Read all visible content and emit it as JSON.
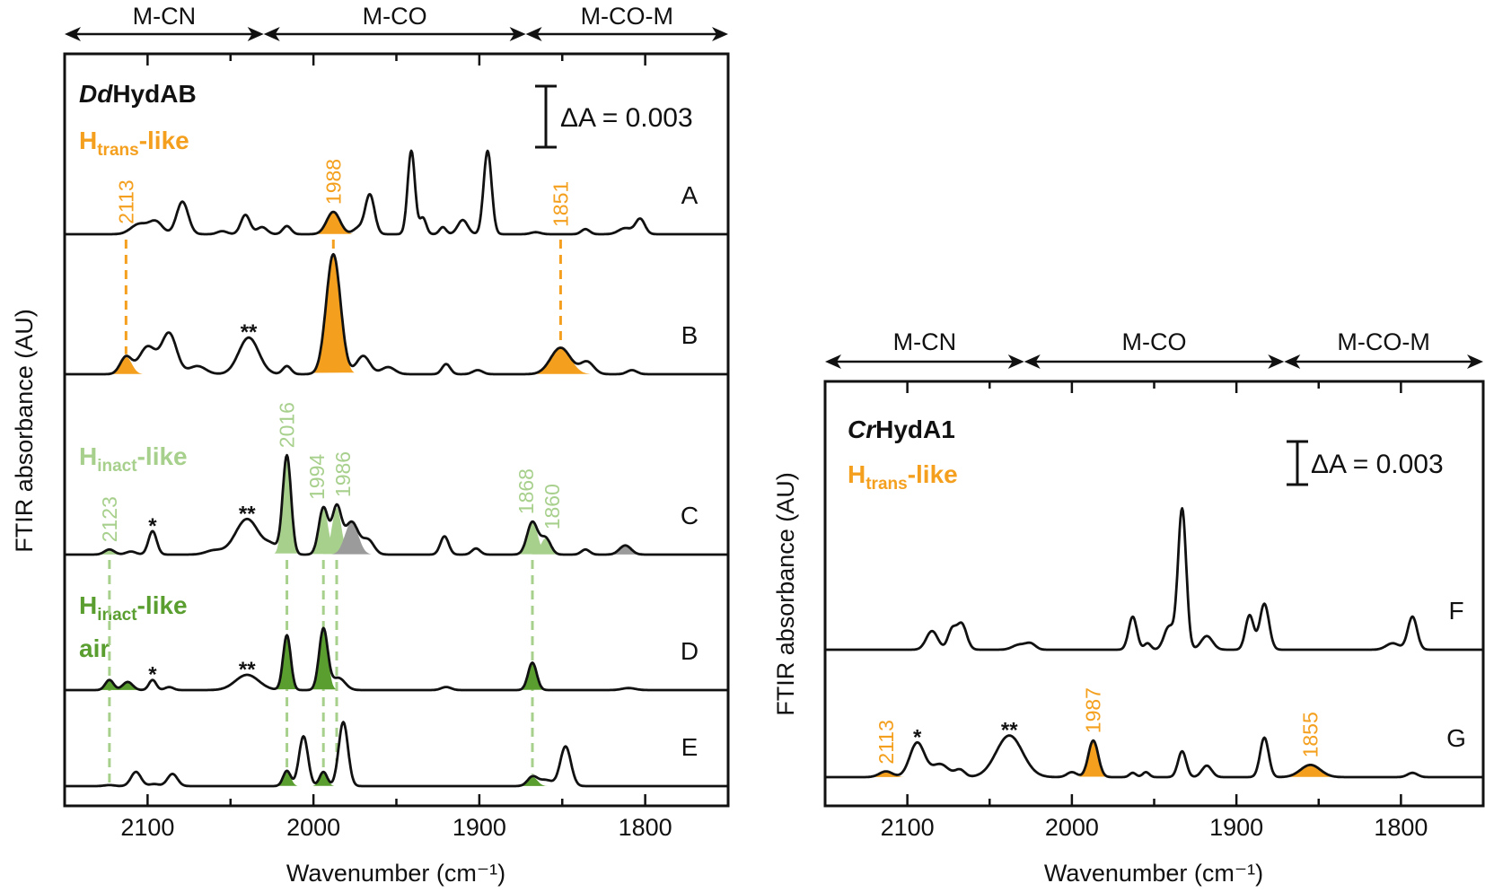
{
  "colors": {
    "orange": "#F4A01E",
    "light_green": "#A8D08D",
    "dark_green": "#5A9E30",
    "grey": "#9B9B9B",
    "trace": "#111111"
  },
  "chart_data": [
    {
      "type": "line",
      "sample": {
        "italic": "Dd",
        "bold": "HydAB"
      },
      "xlabel": "Wavenumber (cm⁻¹)",
      "ylabel": "FTIR absorbance (AU)",
      "xlim": [
        2150,
        1750
      ],
      "xticks": [
        "2100",
        "2000",
        "1900",
        "1800"
      ],
      "x_tick_values": [
        2100,
        2000,
        1900,
        1800
      ],
      "minor_ticks": [
        2050,
        1950,
        1850
      ],
      "scale_bar": "ΔA = 0.003",
      "scale_bar_value": 0.003,
      "regions": [
        {
          "label": "M-CN",
          "from": 2150,
          "to": 2030
        },
        {
          "label": "M-CO",
          "from": 2030,
          "to": 1872
        },
        {
          "label": "M-CO-M",
          "from": 1872,
          "to": 1750
        }
      ],
      "state_labels": [
        {
          "main": "H",
          "sub": "trans",
          "suffix": "-like",
          "color": "orange"
        },
        {
          "main": "H",
          "sub": "inact",
          "suffix": "-like",
          "color": "light_green"
        },
        {
          "main": "H",
          "sub": "inact",
          "suffix": "-like",
          "extra": "air",
          "color": "dark_green"
        }
      ],
      "peak_units": "mAU",
      "series": [
        {
          "name": "A",
          "peaks": [
            [
              2105,
              0.5,
              5
            ],
            [
              2095,
              0.6,
              4
            ],
            [
              2079,
              1.6,
              3.5
            ],
            [
              2055,
              0.15,
              3
            ],
            [
              2041,
              0.95,
              2.8
            ],
            [
              2031,
              0.35,
              3
            ],
            [
              2016,
              0.4,
              2.5
            ],
            [
              1988,
              1.1,
              4,
              "orange"
            ],
            [
              1973,
              0.3,
              3
            ],
            [
              1966,
              1.95,
              2.8
            ],
            [
              1941,
              4.1,
              2.2
            ],
            [
              1934,
              0.8,
              2
            ],
            [
              1922,
              0.35,
              2
            ],
            [
              1910,
              0.7,
              3
            ],
            [
              1895,
              4.1,
              2.4
            ],
            [
              1866,
              0.1,
              3
            ],
            [
              1836,
              0.25,
              2.5
            ],
            [
              1812,
              0.3,
              4
            ],
            [
              1803,
              0.75,
              2.8
            ]
          ]
        },
        {
          "name": "B",
          "peaks": [
            [
              2113,
              0.85,
              3.5,
              "orange"
            ],
            [
              2100,
              1.35,
              5
            ],
            [
              2087,
              2.0,
              4.5
            ],
            [
              2070,
              0.4,
              5
            ],
            [
              2039,
              1.8,
              6
            ],
            [
              2016,
              0.4,
              2.5
            ],
            [
              1988,
              5.9,
              4.3,
              "orange"
            ],
            [
              1970,
              0.9,
              4
            ],
            [
              1955,
              0.35,
              4
            ],
            [
              1920,
              0.5,
              2.5
            ],
            [
              1901,
              0.2,
              3
            ],
            [
              1851,
              1.3,
              6,
              "orange"
            ],
            [
              1835,
              0.6,
              4
            ],
            [
              1808,
              0.2,
              3
            ]
          ]
        },
        {
          "name": "C",
          "peaks": [
            [
              2123,
              0.25,
              3,
              "light_green"
            ],
            [
              2110,
              0.15,
              3
            ],
            [
              2097,
              1.15,
              2.5
            ],
            [
              2060,
              0.2,
              5
            ],
            [
              2040,
              1.75,
              7
            ],
            [
              2025,
              0.4,
              4
            ],
            [
              2016,
              4.85,
              2.5,
              "light_green"
            ],
            [
              1994,
              2.3,
              2.8,
              "light_green"
            ],
            [
              1986,
              2.3,
              2.8,
              "light_green"
            ],
            [
              1977,
              1.6,
              4,
              "grey"
            ],
            [
              1967,
              0.7,
              3.5
            ],
            [
              1921,
              0.9,
              2.5
            ],
            [
              1902,
              0.3,
              2.5
            ],
            [
              1868,
              1.6,
              3.2,
              "light_green"
            ],
            [
              1860,
              0.8,
              3,
              "light_green"
            ],
            [
              1836,
              0.25,
              2.5
            ],
            [
              1812,
              0.45,
              3.5,
              "grey"
            ]
          ]
        },
        {
          "name": "D",
          "peaks": [
            [
              2123,
              0.5,
              2.5,
              "dark_green"
            ],
            [
              2112,
              0.4,
              3,
              "dark_green"
            ],
            [
              2097,
              0.5,
              2.2
            ],
            [
              2087,
              0.15,
              2.5
            ],
            [
              2040,
              0.75,
              7
            ],
            [
              2016,
              2.7,
              2.3,
              "dark_green"
            ],
            [
              1994,
              3.0,
              2.6,
              "dark_green"
            ],
            [
              1985,
              0.6,
              4
            ],
            [
              1920,
              0.15,
              3
            ],
            [
              1868,
              1.35,
              2.6,
              "dark_green"
            ],
            [
              1810,
              0.1,
              4
            ]
          ]
        },
        {
          "name": "E",
          "peaks": [
            [
              2123,
              0.05,
              3,
              "dark_green"
            ],
            [
              2107,
              0.7,
              3
            ],
            [
              2096,
              0.1,
              3
            ],
            [
              2085,
              0.6,
              3
            ],
            [
              2016,
              0.75,
              2.3,
              "dark_green"
            ],
            [
              2006,
              2.45,
              2.7
            ],
            [
              1994,
              0.7,
              2.3,
              "dark_green"
            ],
            [
              1982,
              3.15,
              2.8
            ],
            [
              1868,
              0.45,
              3,
              "dark_green"
            ],
            [
              1860,
              0.3,
              4
            ],
            [
              1848,
              1.95,
              3.2
            ]
          ]
        }
      ],
      "annotations": [
        {
          "series": "A",
          "text": "2113",
          "wn": 2113,
          "color": "orange"
        },
        {
          "series": "A",
          "text": "1988",
          "wn": 1988,
          "color": "orange"
        },
        {
          "series": "A",
          "text": "1851",
          "wn": 1851,
          "color": "orange"
        },
        {
          "series": "B",
          "text": "**",
          "wn": 2039
        },
        {
          "series": "C",
          "text": "2123",
          "wn": 2123,
          "color": "light_green"
        },
        {
          "series": "C",
          "text": "*",
          "wn": 2097
        },
        {
          "series": "C",
          "text": "**",
          "wn": 2040
        },
        {
          "series": "C",
          "text": "2016",
          "wn": 2016,
          "color": "light_green"
        },
        {
          "series": "C",
          "text": "1994",
          "wn": 1994,
          "color": "light_green"
        },
        {
          "series": "C",
          "text": "1986",
          "wn": 1986,
          "color": "light_green"
        },
        {
          "series": "C",
          "text": "1868",
          "wn": 1868,
          "color": "light_green"
        },
        {
          "series": "C",
          "text": "1860",
          "wn": 1860,
          "color": "light_green"
        },
        {
          "series": "D",
          "text": "*",
          "wn": 2097
        },
        {
          "series": "D",
          "text": "**",
          "wn": 2040
        }
      ],
      "guides": [
        {
          "wn": 2113,
          "from": "A",
          "to": "B",
          "color": "orange"
        },
        {
          "wn": 1988,
          "from": "A",
          "to": "B",
          "color": "orange"
        },
        {
          "wn": 1851,
          "from": "A",
          "to": "B",
          "color": "orange"
        },
        {
          "wn": 2123,
          "from": "C",
          "to": "E",
          "color": "light_green"
        },
        {
          "wn": 2016,
          "from": "C",
          "to": "E",
          "color": "light_green"
        },
        {
          "wn": 1994,
          "from": "C",
          "to": "E",
          "color": "light_green"
        },
        {
          "wn": 1986,
          "from": "C",
          "to": "E",
          "color": "light_green"
        },
        {
          "wn": 1868,
          "from": "C",
          "to": "E",
          "color": "light_green"
        }
      ]
    },
    {
      "type": "line",
      "sample": {
        "italic": "Cr",
        "bold": "HydA1"
      },
      "xlabel": "Wavenumber (cm⁻¹)",
      "ylabel": "FTIR absorbance (AU)",
      "xlim": [
        2150,
        1750
      ],
      "xticks": [
        "2100",
        "2000",
        "1900",
        "1800"
      ],
      "x_tick_values": [
        2100,
        2000,
        1900,
        1800
      ],
      "minor_ticks": [
        2050,
        1950,
        1850
      ],
      "scale_bar": "ΔA = 0.003",
      "scale_bar_value": 0.003,
      "regions": [
        {
          "label": "M-CN",
          "from": 2150,
          "to": 2029
        },
        {
          "label": "M-CO",
          "from": 2029,
          "to": 1871
        },
        {
          "label": "M-CO-M",
          "from": 1871,
          "to": 1750
        }
      ],
      "state_labels": [
        {
          "main": "H",
          "sub": "trans",
          "suffix": "-like",
          "color": "orange"
        }
      ],
      "peak_units": "mAU",
      "series": [
        {
          "name": "F",
          "peaks": [
            [
              2085,
              1.3,
              3.5
            ],
            [
              2073,
              1.3,
              2.5
            ],
            [
              2067,
              1.8,
              3
            ],
            [
              2032,
              0.35,
              4
            ],
            [
              2025,
              0.4,
              3
            ],
            [
              1963,
              2.3,
              2.5
            ],
            [
              1954,
              0.45,
              2
            ],
            [
              1941,
              1.6,
              3
            ],
            [
              1933,
              9.8,
              2.5
            ],
            [
              1918,
              0.95,
              3.5
            ],
            [
              1892,
              2.4,
              2.5
            ],
            [
              1883,
              3.2,
              2.8
            ],
            [
              1805,
              0.45,
              4
            ],
            [
              1793,
              2.3,
              2.8
            ]
          ]
        },
        {
          "name": "G",
          "peaks": [
            [
              2113,
              0.4,
              4,
              "orange"
            ],
            [
              2094,
              2.4,
              4.5
            ],
            [
              2080,
              0.9,
              5
            ],
            [
              2068,
              0.5,
              3
            ],
            [
              2038,
              2.9,
              8
            ],
            [
              2000,
              0.35,
              3
            ],
            [
              1987,
              2.55,
              3,
              "orange"
            ],
            [
              1963,
              0.3,
              2
            ],
            [
              1955,
              0.35,
              2
            ],
            [
              1933,
              1.8,
              2.5
            ],
            [
              1918,
              0.8,
              3
            ],
            [
              1883,
              2.75,
              2.6
            ],
            [
              1855,
              0.85,
              6,
              "orange"
            ],
            [
              1793,
              0.3,
              3
            ]
          ]
        }
      ],
      "annotations": [
        {
          "series": "G",
          "text": "2113",
          "wn": 2113,
          "color": "orange"
        },
        {
          "series": "G",
          "text": "*",
          "wn": 2094
        },
        {
          "series": "G",
          "text": "**",
          "wn": 2038
        },
        {
          "series": "G",
          "text": "1987",
          "wn": 1987,
          "color": "orange"
        },
        {
          "series": "G",
          "text": "1855",
          "wn": 1855,
          "color": "orange"
        }
      ],
      "guides": []
    }
  ]
}
